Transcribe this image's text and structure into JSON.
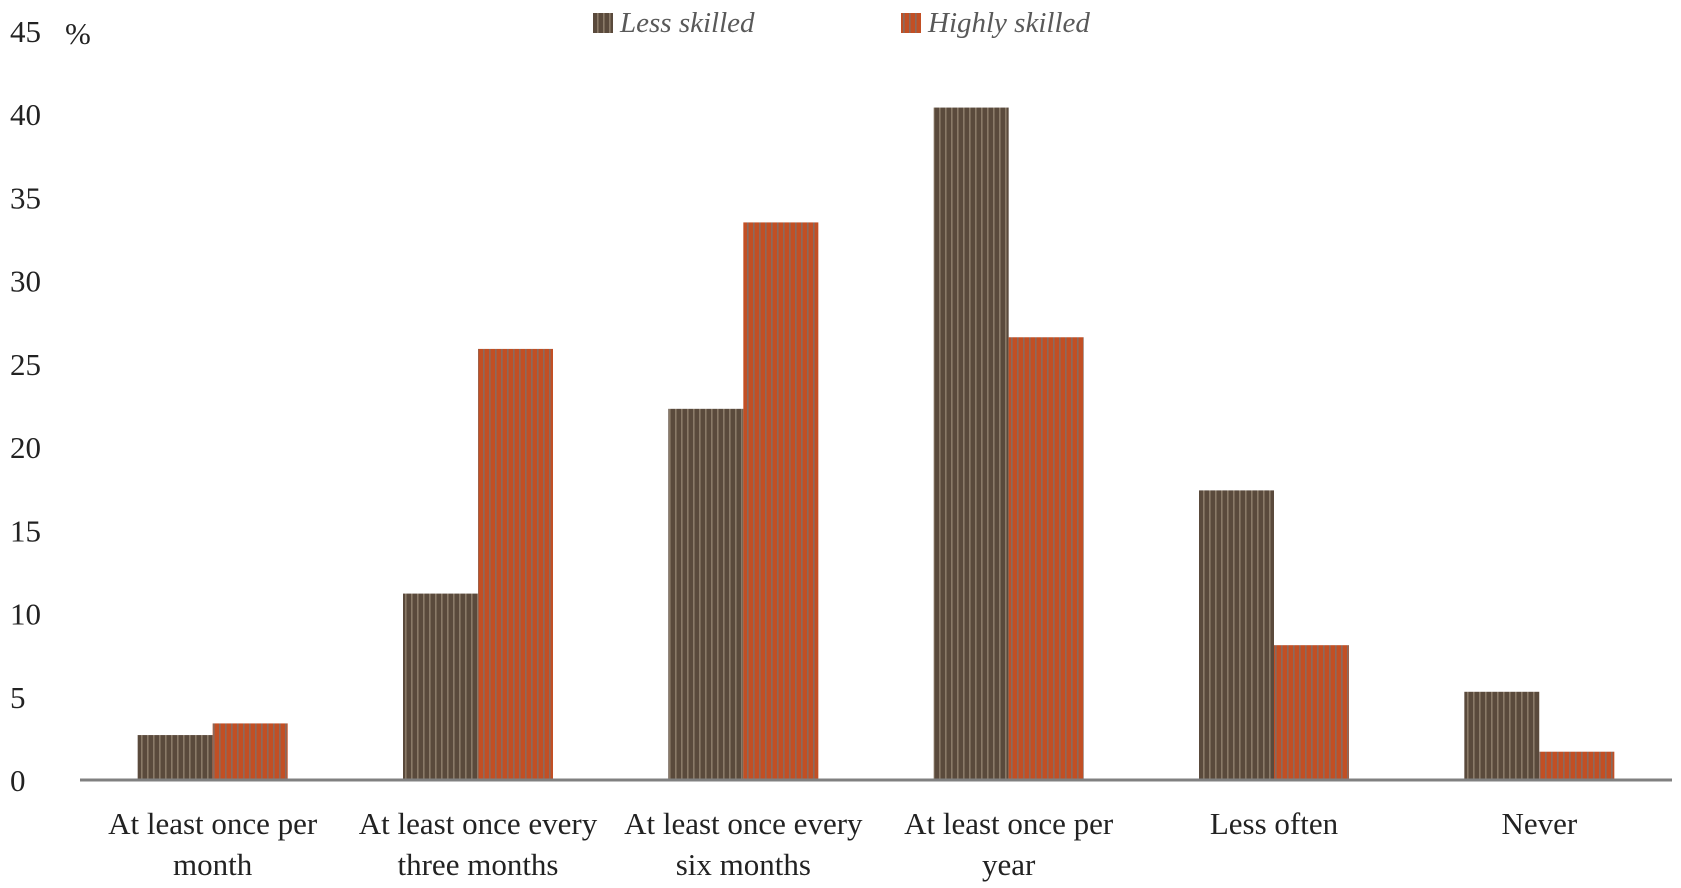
{
  "chart_data": {
    "type": "bar",
    "title": "",
    "xlabel": "",
    "ylabel": "",
    "y_unit_label": "%",
    "ylim": [
      0,
      45
    ],
    "yticks": [
      "0",
      "5",
      "10",
      "15",
      "20",
      "25",
      "30",
      "35",
      "40",
      "45"
    ],
    "grid": false,
    "legend_position": "top-center",
    "categories": [
      [
        "At least once per",
        "month"
      ],
      [
        "At least once every",
        "three months"
      ],
      [
        "At least once every",
        "six months"
      ],
      [
        "At least once per",
        "year"
      ],
      [
        "Less often"
      ],
      [
        "Never"
      ]
    ],
    "series": [
      {
        "name": "Less skilled",
        "color": "#5a4a3c",
        "stripe_color": "#8a7a68",
        "values": [
          2.7,
          11.2,
          22.3,
          40.4,
          17.4,
          5.3
        ]
      },
      {
        "name": "Highly skilled",
        "color": "#c24f24",
        "stripe_color": "#8a6a5e",
        "values": [
          3.4,
          25.9,
          33.5,
          26.6,
          8.1,
          1.7
        ]
      }
    ],
    "axis_color": "#808080"
  }
}
